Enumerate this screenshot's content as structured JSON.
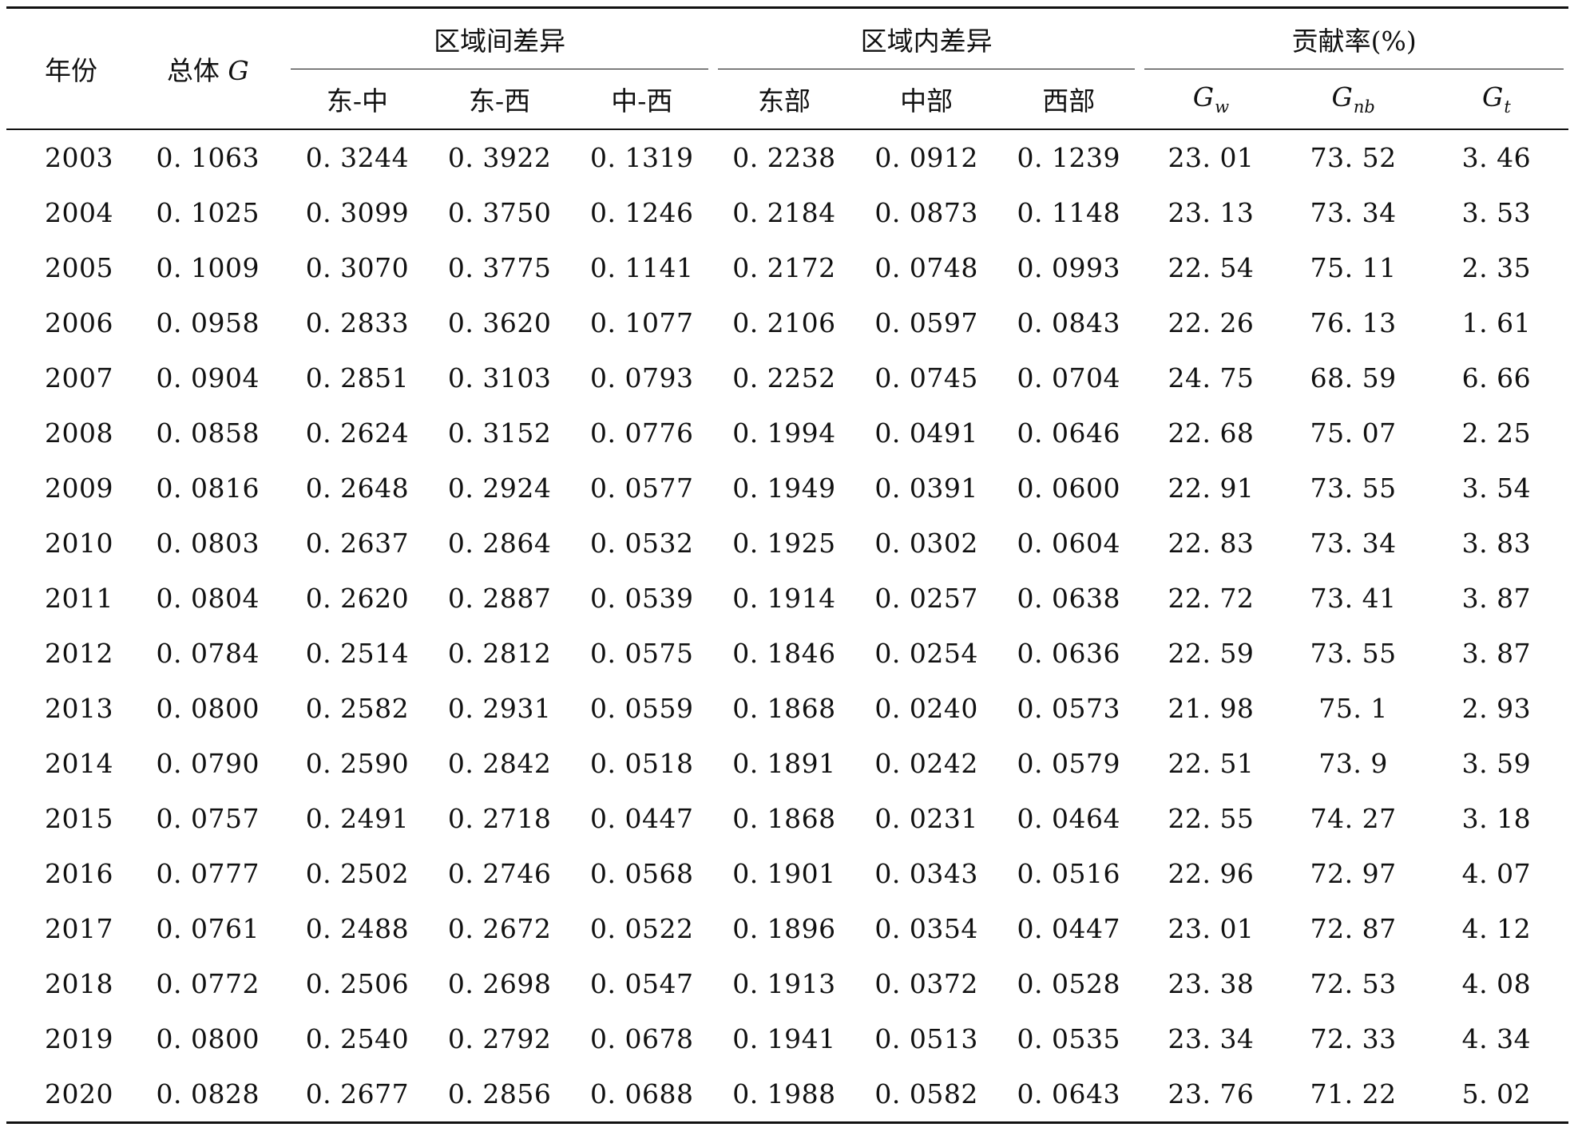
{
  "header": {
    "year": "年份",
    "total_prefix": "总体 ",
    "total_symbol": "G",
    "group_between": "区域间差异",
    "group_within": "区域内差异",
    "group_contrib": "贡献率(%)",
    "between_cols": [
      "东-中",
      "东-西",
      "中-西"
    ],
    "within_cols": [
      "东部",
      "中部",
      "西部"
    ],
    "contrib_cols": [
      {
        "main": "G",
        "sub": "w"
      },
      {
        "main": "G",
        "sub": "nb"
      },
      {
        "main": "G",
        "sub": "t"
      }
    ]
  },
  "rows": [
    [
      "2003",
      "0. 1063",
      "0. 3244",
      "0. 3922",
      "0. 1319",
      "0. 2238",
      "0. 0912",
      "0. 1239",
      "23. 01",
      "73. 52",
      "3. 46"
    ],
    [
      "2004",
      "0. 1025",
      "0. 3099",
      "0. 3750",
      "0. 1246",
      "0. 2184",
      "0. 0873",
      "0. 1148",
      "23. 13",
      "73. 34",
      "3. 53"
    ],
    [
      "2005",
      "0. 1009",
      "0. 3070",
      "0. 3775",
      "0. 1141",
      "0. 2172",
      "0. 0748",
      "0. 0993",
      "22. 54",
      "75. 11",
      "2. 35"
    ],
    [
      "2006",
      "0. 0958",
      "0. 2833",
      "0. 3620",
      "0. 1077",
      "0. 2106",
      "0. 0597",
      "0. 0843",
      "22. 26",
      "76. 13",
      "1. 61"
    ],
    [
      "2007",
      "0. 0904",
      "0. 2851",
      "0. 3103",
      "0. 0793",
      "0. 2252",
      "0. 0745",
      "0. 0704",
      "24. 75",
      "68. 59",
      "6. 66"
    ],
    [
      "2008",
      "0. 0858",
      "0. 2624",
      "0. 3152",
      "0. 0776",
      "0. 1994",
      "0. 0491",
      "0. 0646",
      "22. 68",
      "75. 07",
      "2. 25"
    ],
    [
      "2009",
      "0. 0816",
      "0. 2648",
      "0. 2924",
      "0. 0577",
      "0. 1949",
      "0. 0391",
      "0. 0600",
      "22. 91",
      "73. 55",
      "3. 54"
    ],
    [
      "2010",
      "0. 0803",
      "0. 2637",
      "0. 2864",
      "0. 0532",
      "0. 1925",
      "0. 0302",
      "0. 0604",
      "22. 83",
      "73. 34",
      "3. 83"
    ],
    [
      "2011",
      "0. 0804",
      "0. 2620",
      "0. 2887",
      "0. 0539",
      "0. 1914",
      "0. 0257",
      "0. 0638",
      "22. 72",
      "73. 41",
      "3. 87"
    ],
    [
      "2012",
      "0. 0784",
      "0. 2514",
      "0. 2812",
      "0. 0575",
      "0. 1846",
      "0. 0254",
      "0. 0636",
      "22. 59",
      "73. 55",
      "3. 87"
    ],
    [
      "2013",
      "0. 0800",
      "0. 2582",
      "0. 2931",
      "0. 0559",
      "0. 1868",
      "0. 0240",
      "0. 0573",
      "21. 98",
      "75. 1",
      "2. 93"
    ],
    [
      "2014",
      "0. 0790",
      "0. 2590",
      "0. 2842",
      "0. 0518",
      "0. 1891",
      "0. 0242",
      "0. 0579",
      "22. 51",
      "73. 9",
      "3. 59"
    ],
    [
      "2015",
      "0. 0757",
      "0. 2491",
      "0. 2718",
      "0. 0447",
      "0. 1868",
      "0. 0231",
      "0. 0464",
      "22. 55",
      "74. 27",
      "3. 18"
    ],
    [
      "2016",
      "0. 0777",
      "0. 2502",
      "0. 2746",
      "0. 0568",
      "0. 1901",
      "0. 0343",
      "0. 0516",
      "22. 96",
      "72. 97",
      "4. 07"
    ],
    [
      "2017",
      "0. 0761",
      "0. 2488",
      "0. 2672",
      "0. 0522",
      "0. 1896",
      "0. 0354",
      "0. 0447",
      "23. 01",
      "72. 87",
      "4. 12"
    ],
    [
      "2018",
      "0. 0772",
      "0. 2506",
      "0. 2698",
      "0. 0547",
      "0. 1913",
      "0. 0372",
      "0. 0528",
      "23. 38",
      "72. 53",
      "4. 08"
    ],
    [
      "2019",
      "0. 0800",
      "0. 2540",
      "0. 2792",
      "0. 0678",
      "0. 1941",
      "0. 0513",
      "0. 0535",
      "23. 34",
      "72. 33",
      "4. 34"
    ],
    [
      "2020",
      "0. 0828",
      "0. 2677",
      "0. 2856",
      "0. 0688",
      "0. 1988",
      "0. 0582",
      "0. 0643",
      "23. 76",
      "71. 22",
      "5. 02"
    ]
  ]
}
